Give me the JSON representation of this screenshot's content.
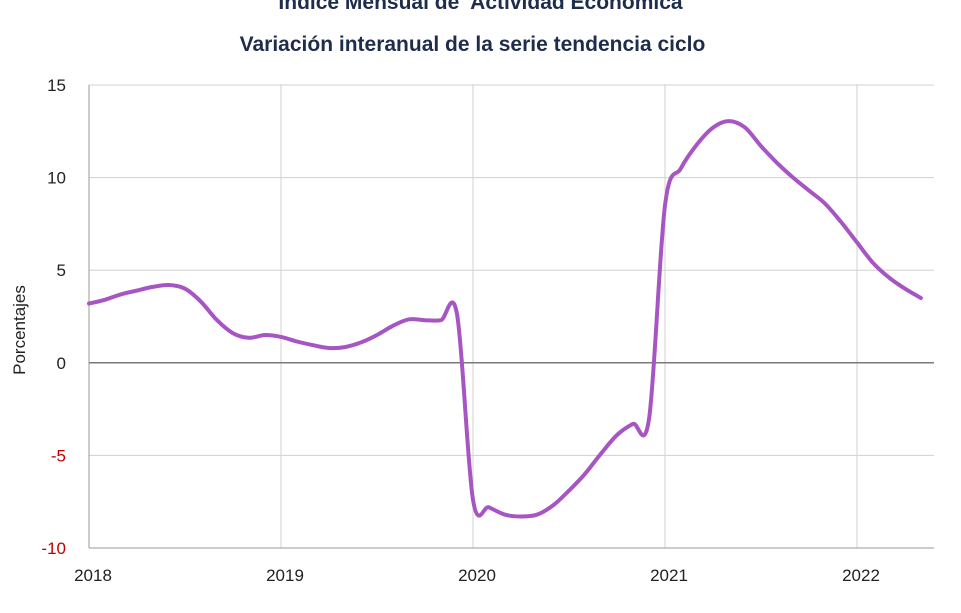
{
  "chart_data": {
    "type": "line",
    "title": "Índice Mensual de  Actividad Económica",
    "subtitle": "Variación interanual de la serie tendencia ciclo",
    "ylabel": "Porcentajes",
    "xlabel": "",
    "ylim": [
      -10,
      15
    ],
    "yticks": [
      15,
      10,
      5,
      0,
      -5,
      -10
    ],
    "xlim": [
      2018,
      2022.4
    ],
    "xticks": [
      "2018",
      "2019",
      "2020",
      "2021",
      "2022"
    ],
    "grid": true,
    "series_color": "#a855c4",
    "series": [
      {
        "x": [
          2018.0,
          2018.083,
          2018.167,
          2018.25,
          2018.333,
          2018.417,
          2018.5,
          2018.583,
          2018.667,
          2018.75,
          2018.833,
          2018.917,
          2019.0,
          2019.083,
          2019.167,
          2019.25,
          2019.333,
          2019.417,
          2019.5,
          2019.583,
          2019.667,
          2019.75,
          2019.833,
          2019.917,
          2020.0,
          2020.083,
          2020.167,
          2020.25,
          2020.333,
          2020.417,
          2020.5,
          2020.583,
          2020.667,
          2020.75,
          2020.833,
          2020.917,
          2021.0,
          2021.083,
          2021.167,
          2021.25,
          2021.333,
          2021.417,
          2021.5,
          2021.583,
          2021.667,
          2021.75,
          2021.833,
          2021.917,
          2022.0,
          2022.083,
          2022.167,
          2022.25,
          2022.333
        ],
        "y": [
          3.2,
          3.4,
          3.7,
          3.9,
          4.1,
          4.2,
          4.0,
          3.3,
          2.3,
          1.6,
          1.35,
          1.5,
          1.4,
          1.15,
          0.95,
          0.8,
          0.85,
          1.1,
          1.5,
          2.0,
          2.35,
          2.3,
          2.3,
          2.6,
          -7.4,
          -7.8,
          -8.2,
          -8.3,
          -8.2,
          -7.7,
          -6.9,
          -6.0,
          -4.9,
          -3.9,
          -3.3,
          -3.0,
          8.5,
          10.5,
          11.8,
          12.7,
          13.05,
          12.7,
          11.7,
          10.8,
          10.0,
          9.3,
          8.6,
          7.6,
          6.5,
          5.4,
          4.6,
          4.0,
          3.5
        ]
      }
    ]
  }
}
